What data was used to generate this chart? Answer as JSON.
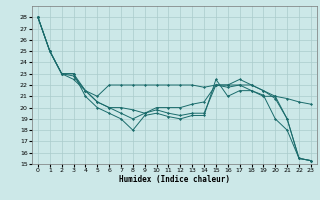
{
  "title": "",
  "xlabel": "Humidex (Indice chaleur)",
  "bg_color": "#cce8e8",
  "grid_color": "#aacccc",
  "line_color": "#1a6b6b",
  "xlim": [
    -0.5,
    23.5
  ],
  "ylim": [
    15,
    29
  ],
  "yticks": [
    15,
    16,
    17,
    18,
    19,
    20,
    21,
    22,
    23,
    24,
    25,
    26,
    27,
    28
  ],
  "xticks": [
    0,
    1,
    2,
    3,
    4,
    5,
    6,
    7,
    8,
    9,
    10,
    11,
    12,
    13,
    14,
    15,
    16,
    17,
    18,
    19,
    20,
    21,
    22,
    23
  ],
  "series": [
    [
      28,
      25,
      23,
      23,
      21,
      20,
      19.5,
      19,
      18,
      19.3,
      19.5,
      19.2,
      19,
      19.3,
      19.3,
      22.5,
      21,
      21.5,
      21.5,
      21.1,
      19,
      18,
      15.5,
      15.3
    ],
    [
      28,
      25,
      23,
      22.8,
      21.5,
      21,
      22,
      22,
      22,
      22,
      22,
      22,
      22,
      22,
      21.8,
      22,
      21.8,
      22,
      21.5,
      21,
      21,
      20.8,
      20.5,
      20.3
    ],
    [
      28,
      25,
      23,
      22.5,
      21.5,
      20.5,
      20,
      19.5,
      19,
      19.5,
      19.8,
      19.5,
      19.3,
      19.5,
      19.5,
      22,
      22,
      22,
      22,
      21.5,
      20.8,
      19,
      15.5,
      15.3
    ],
    [
      28,
      25,
      23,
      23,
      21.5,
      20.5,
      20,
      20,
      19.8,
      19.5,
      20,
      20,
      20,
      20.3,
      20.5,
      22,
      22,
      22.5,
      22,
      21.5,
      21,
      19,
      15.5,
      15.3
    ]
  ]
}
